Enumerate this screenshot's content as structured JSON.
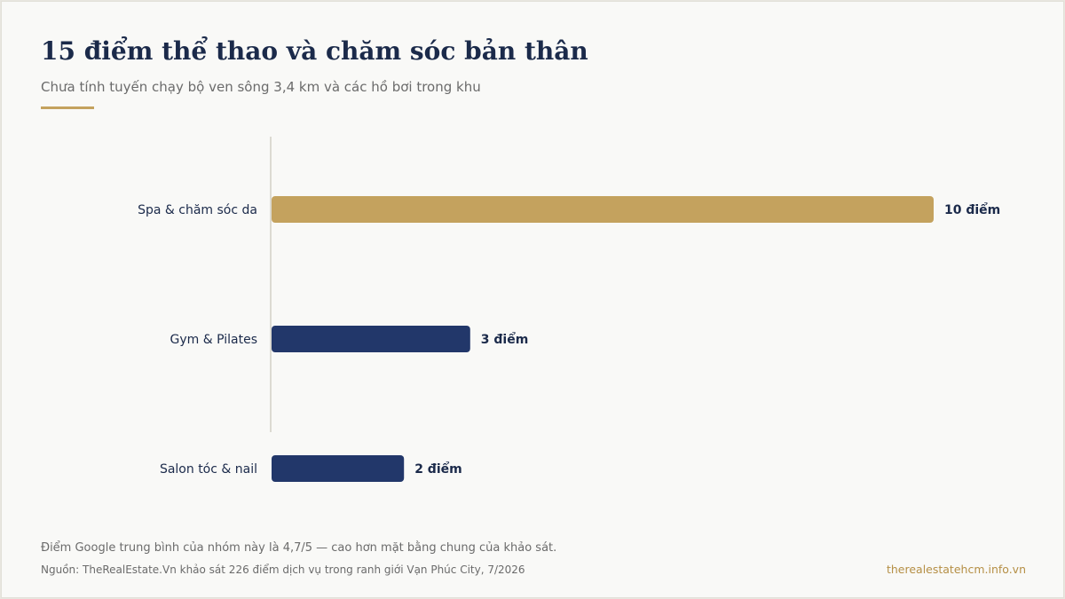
{
  "header": {
    "title": "15 điểm thể thao và chăm sóc bản thân",
    "subtitle": "Chưa tính tuyến chạy bộ ven sông 3,4 km và các hồ bơi trong khu"
  },
  "colors": {
    "highlight": "#c4a25e",
    "primary": "#22376a",
    "label": "#1b2a4a",
    "axis": "#dcdad2",
    "background": "#f9f9f7"
  },
  "chart_data": {
    "type": "bar",
    "orientation": "horizontal",
    "title": "15 điểm thể thao và chăm sóc bản thân",
    "categories": [
      "Spa & chăm sóc da",
      "Gym & Pilates",
      "Salon tóc & nail"
    ],
    "values": [
      10,
      3,
      2
    ],
    "value_labels": [
      "10 điểm",
      "3 điểm",
      "2 điểm"
    ],
    "highlight_index": 0,
    "xlim": [
      0,
      10
    ],
    "grid": false,
    "legend": "none"
  },
  "footer": {
    "note": "Điểm Google trung bình của nhóm này là 4,7/5 — cao hơn mặt bằng chung của khảo sát.",
    "source": "Nguồn: TheRealEstate.Vn khảo sát 226 điểm dịch vụ trong ranh giới Vạn Phúc City, 7/2026",
    "site": "therealestatehcm.info.vn"
  }
}
